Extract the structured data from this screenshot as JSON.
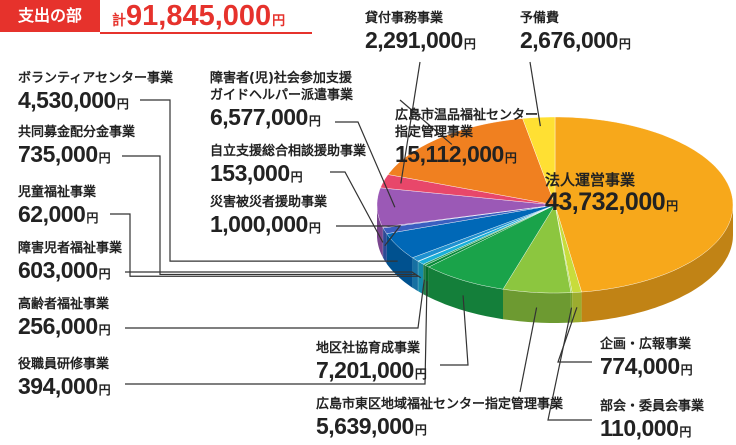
{
  "chart_data": {
    "type": "pie",
    "title": "支出の部",
    "total_prefix": "計",
    "total": 91845000,
    "total_label": "91,845,000",
    "unit": "円",
    "categories": [
      "法人運営事業",
      "企画・広報事業",
      "部会・委員会事業",
      "広島市東区地域福祉センター指定管理事業",
      "地区社協育成事業",
      "役職員研修事業",
      "高齢者福祉事業",
      "障害児者福祉事業",
      "児童福祉事業",
      "共同募金配分金事業",
      "ボランティアセンター事業",
      "災害被災者援助事業",
      "自立支援総合相談援助事業",
      "障害者(児)社会参加支援\nガイドヘルパー派遣事業",
      "貸付事務事業",
      "広島市温品福祉センター\n指定管理事業",
      "予備費"
    ],
    "values": [
      43732000,
      774000,
      110000,
      5639000,
      7201000,
      394000,
      256000,
      603000,
      62000,
      735000,
      4530000,
      1000000,
      153000,
      6577000,
      2291000,
      15112000,
      2676000
    ],
    "value_labels": [
      "43,732,000",
      "774,000",
      "110,000",
      "5,639,000",
      "7,201,000",
      "394,000",
      "256,000",
      "603,000",
      "62,000",
      "735,000",
      "4,530,000",
      "1,000,000",
      "153,000",
      "6,577,000",
      "2,291,000",
      "15,112,000",
      "2,676,000"
    ],
    "colors": [
      "#f7a81b",
      "#c8dc3c",
      "#9acd32",
      "#8cc63f",
      "#1aa34a",
      "#0a8a3a",
      "#2e9e5a",
      "#1ab0d8",
      "#55c0e8",
      "#1e90d0",
      "#0068b7",
      "#3a5fc0",
      "#6a4fb0",
      "#9b59b6",
      "#e8476a",
      "#f08020",
      "#ffe033"
    ]
  }
}
